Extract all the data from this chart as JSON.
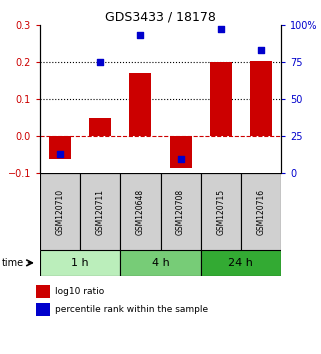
{
  "title": "GDS3433 / 18178",
  "samples": [
    "GSM120710",
    "GSM120711",
    "GSM120648",
    "GSM120708",
    "GSM120715",
    "GSM120716"
  ],
  "log10_ratio": [
    -0.062,
    0.048,
    0.17,
    -0.085,
    0.2,
    0.202
  ],
  "percentile_rank_pct": [
    13,
    75,
    93,
    10,
    97,
    83
  ],
  "ylim_left": [
    -0.1,
    0.3
  ],
  "ylim_right": [
    0,
    100
  ],
  "left_ticks": [
    -0.1,
    0.0,
    0.1,
    0.2,
    0.3
  ],
  "right_ticks": [
    0,
    25,
    50,
    75,
    100
  ],
  "right_tick_labels": [
    "0",
    "25",
    "50",
    "75",
    "100%"
  ],
  "hlines_dotted": [
    0.1,
    0.2
  ],
  "hline_dashed": 0.0,
  "bar_color": "#cc0000",
  "dot_color": "#0000cc",
  "time_groups": [
    {
      "label": "1 h",
      "cols": [
        0,
        1
      ],
      "color": "#bbeebb"
    },
    {
      "label": "4 h",
      "cols": [
        2,
        3
      ],
      "color": "#77cc77"
    },
    {
      "label": "24 h",
      "cols": [
        4,
        5
      ],
      "color": "#33aa33"
    }
  ],
  "bar_width": 0.55,
  "dot_size": 25,
  "background_color": "#ffffff",
  "left_axis_color": "#cc0000",
  "right_axis_color": "#0000cc",
  "sample_box_color": "#d0d0d0",
  "title_fontsize": 9,
  "tick_fontsize": 7,
  "sample_fontsize": 5.5,
  "time_fontsize": 8,
  "legend_fontsize": 6.5
}
